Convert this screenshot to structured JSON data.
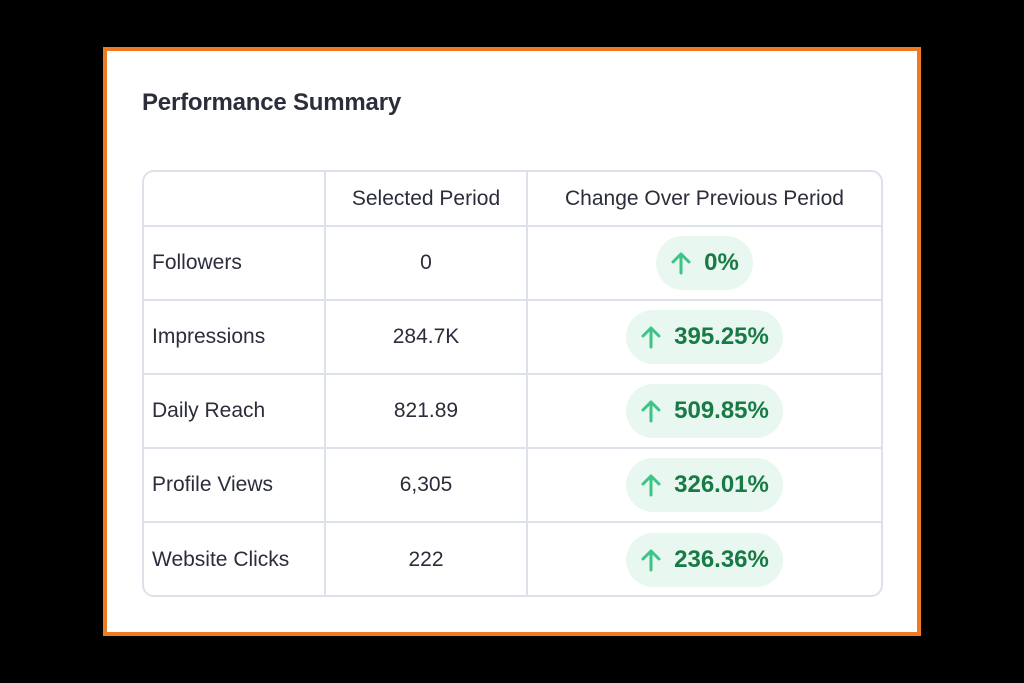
{
  "summary": {
    "title": "Performance Summary",
    "columns": [
      "",
      "Selected Period",
      "Change Over Previous Period"
    ],
    "rows": [
      {
        "metric": "Followers",
        "value": "0",
        "change": "0%"
      },
      {
        "metric": "Impressions",
        "value": "284.7K",
        "change": "395.25%"
      },
      {
        "metric": "Daily Reach",
        "value": "821.89",
        "change": "509.85%"
      },
      {
        "metric": "Profile Views",
        "value": "6,305",
        "change": "326.01%"
      },
      {
        "metric": "Website Clicks",
        "value": "222",
        "change": "236.36%"
      }
    ],
    "change_icon": "arrow-up-icon",
    "colors": {
      "frame_border": "#ef7a24",
      "positive_text": "#187a45",
      "positive_bg": "#e8f8f0",
      "arrow": "#3dc486"
    }
  }
}
